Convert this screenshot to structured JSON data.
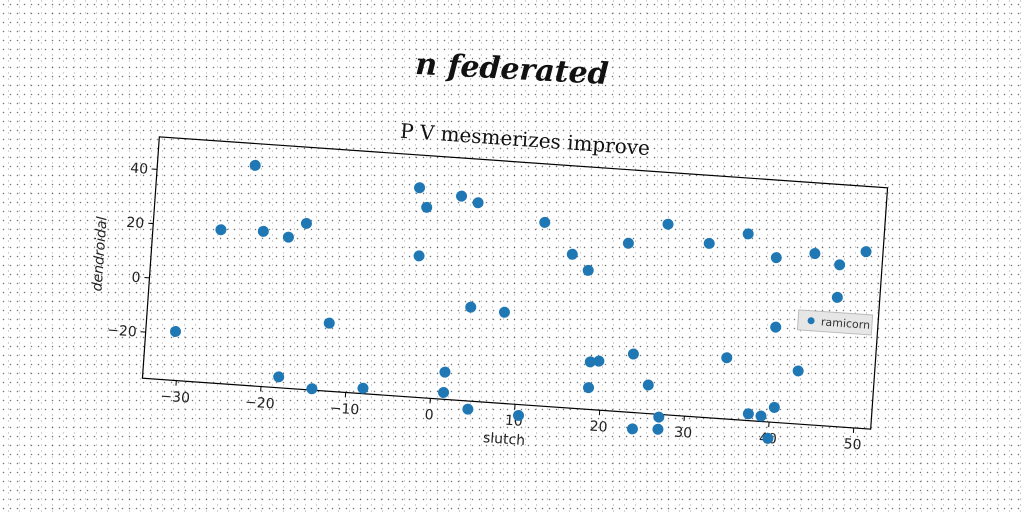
{
  "suptitle": "n federated",
  "chart_data": {
    "type": "scatter",
    "title": "P V mesmerizes improve",
    "xlabel": "slutch",
    "ylabel": "dendroidal",
    "xlim": [
      -34,
      52
    ],
    "ylim": [
      -37,
      52
    ],
    "xticks": [
      -30,
      -20,
      -10,
      0,
      10,
      20,
      30,
      40,
      50
    ],
    "yticks": [
      -20,
      0,
      20,
      40
    ],
    "grid": false,
    "legend_position": "right",
    "series": [
      {
        "name": "ramicorn",
        "color": "#1f77b4",
        "points": [
          [
            -30.5,
            -19.0
          ],
          [
            -26.0,
            19.5
          ],
          [
            -22.5,
            44.0
          ],
          [
            -21.0,
            20.0
          ],
          [
            -18.0,
            18.5
          ],
          [
            -16.0,
            24.0
          ],
          [
            -18.0,
            -33.0
          ],
          [
            -14.0,
            -36.5
          ],
          [
            -12.5,
            -12.0
          ],
          [
            -8.0,
            -35.0
          ],
          [
            -3.0,
            40.0
          ],
          [
            -2.5,
            15.0
          ],
          [
            -2.0,
            33.0
          ],
          [
            1.5,
            -27.0
          ],
          [
            1.5,
            -34.5
          ],
          [
            2.0,
            38.0
          ],
          [
            4.0,
            36.0
          ],
          [
            4.0,
            -2.5
          ],
          [
            4.5,
            -40.0
          ],
          [
            8.0,
            -3.5
          ],
          [
            10.5,
            -41.0
          ],
          [
            12.0,
            30.5
          ],
          [
            15.5,
            19.5
          ],
          [
            17.5,
            14.0
          ],
          [
            18.5,
            -19.5
          ],
          [
            18.5,
            -29.0
          ],
          [
            19.5,
            -19.0
          ],
          [
            22.0,
            25.0
          ],
          [
            23.5,
            -15.5
          ],
          [
            24.0,
            -43.0
          ],
          [
            25.5,
            -26.5
          ],
          [
            26.5,
            33.0
          ],
          [
            27.0,
            -38.0
          ],
          [
            27.0,
            -42.5
          ],
          [
            31.5,
            27.0
          ],
          [
            34.5,
            -14.5
          ],
          [
            36.0,
            31.5
          ],
          [
            37.5,
            -34.5
          ],
          [
            39.0,
            -35.0
          ],
          [
            39.5,
            23.5
          ],
          [
            40.0,
            -2.0
          ],
          [
            40.0,
            -43.0
          ],
          [
            40.5,
            -31.5
          ],
          [
            43.0,
            -17.5
          ],
          [
            44.0,
            26.0
          ],
          [
            47.0,
            22.5
          ],
          [
            47.0,
            10.5
          ],
          [
            50.0,
            28.0
          ]
        ]
      }
    ]
  }
}
